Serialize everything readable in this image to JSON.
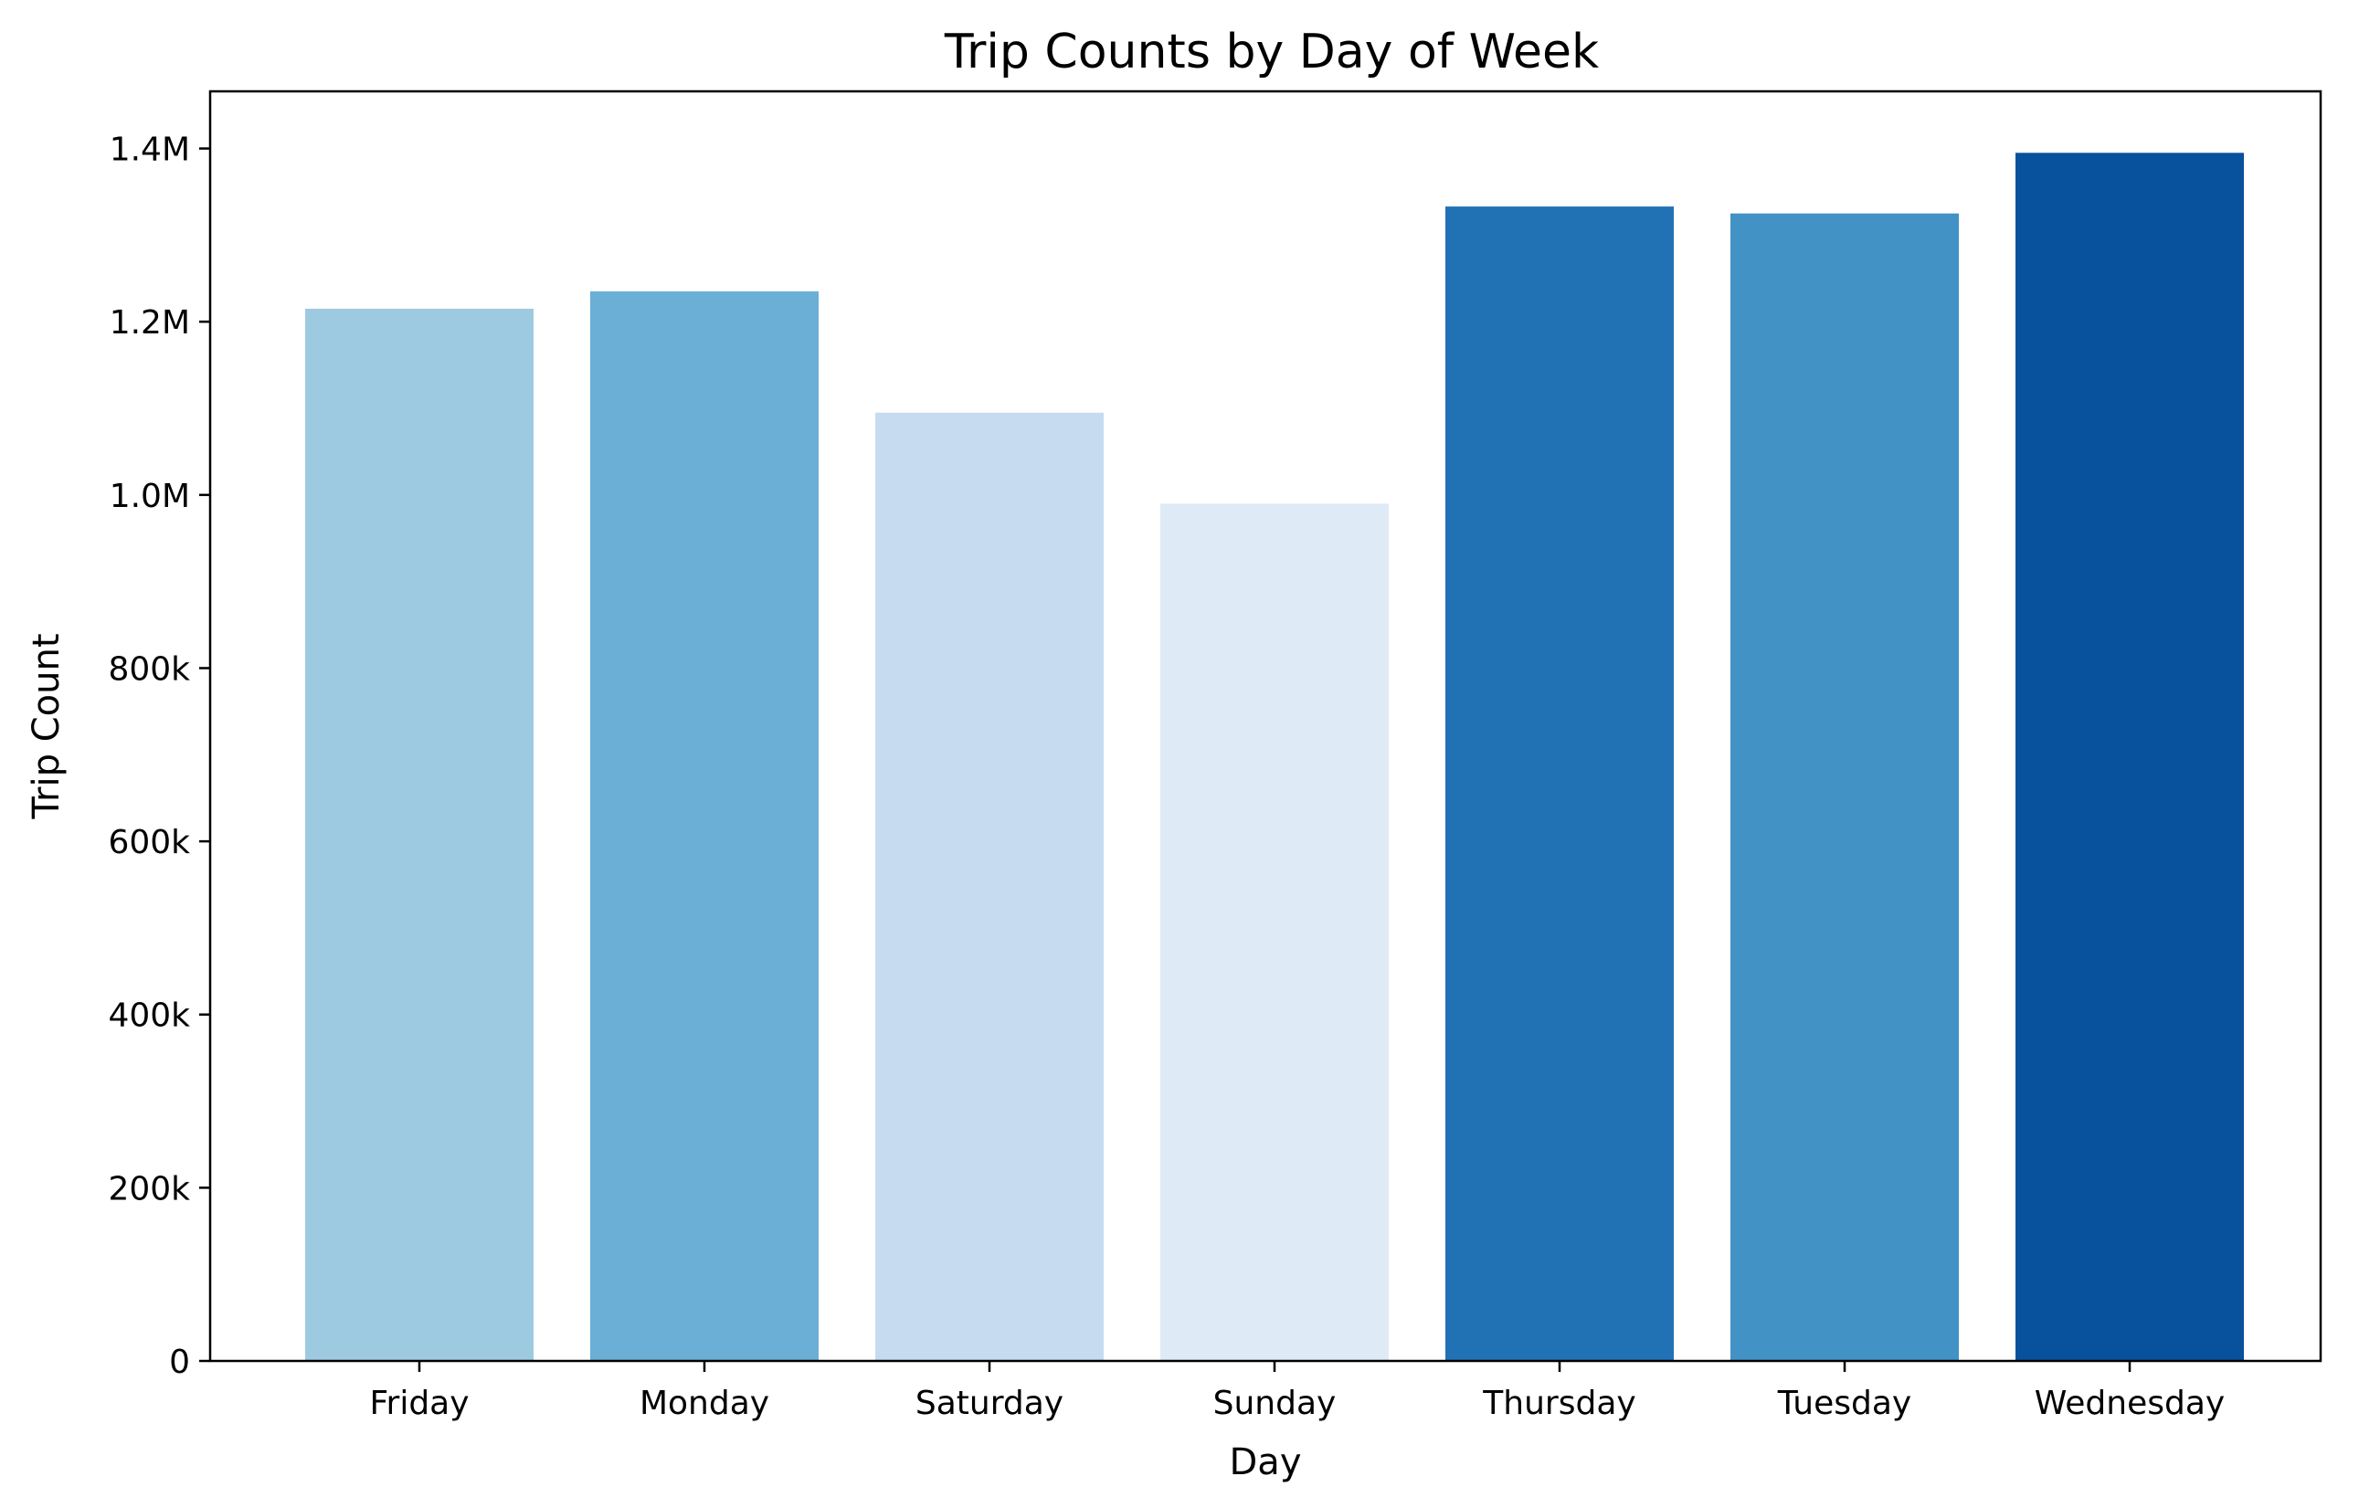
{
  "chart_data": {
    "type": "bar",
    "title": "Trip Counts by Day of Week",
    "xlabel": "Day",
    "ylabel": "Trip Count",
    "categories": [
      "Friday",
      "Monday",
      "Saturday",
      "Sunday",
      "Thursday",
      "Tuesday",
      "Wednesday"
    ],
    "values": [
      1215000,
      1235000,
      1095000,
      990000,
      1333000,
      1325000,
      1395000
    ],
    "colors": [
      "#9ecae1",
      "#6baed6",
      "#c6dbef",
      "#deebf7",
      "#2171b5",
      "#4292c6",
      "#08519c"
    ],
    "ylim": [
      0,
      1466000
    ],
    "yticks": [
      0,
      200000,
      400000,
      600000,
      800000,
      1000000,
      1200000,
      1400000
    ],
    "ytick_labels": [
      "0",
      "200k",
      "400k",
      "600k",
      "800k",
      "1.0M",
      "1.2M",
      "1.4M"
    ],
    "grid": false,
    "legend": "none"
  }
}
